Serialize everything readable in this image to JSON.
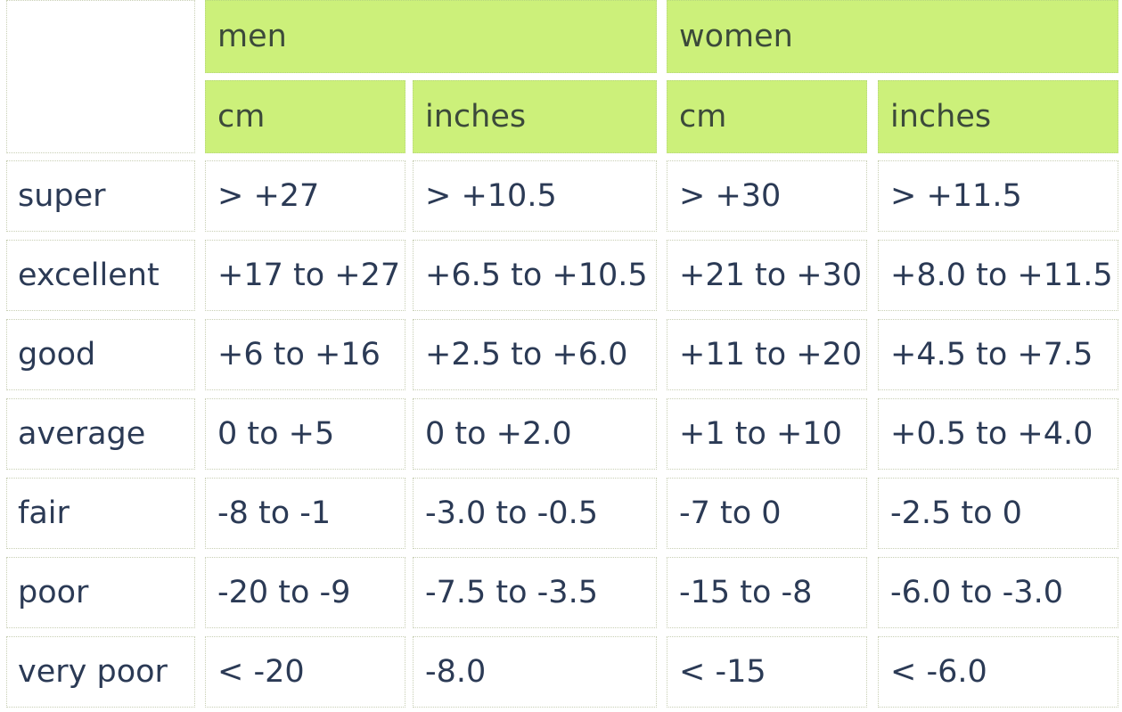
{
  "table": {
    "group_headers": [
      "men",
      "women"
    ],
    "sub_headers": [
      "cm",
      "inches",
      "cm",
      "inches"
    ],
    "rows": [
      {
        "label": "super",
        "values": [
          "> +27",
          "> +10.5",
          "> +30",
          "> +11.5"
        ]
      },
      {
        "label": "excellent",
        "values": [
          "+17 to +27",
          "+6.5 to +10.5",
          "+21 to +30",
          "+8.0 to +11.5"
        ]
      },
      {
        "label": "good",
        "values": [
          "+6 to +16",
          "+2.5 to +6.0",
          "+11 to +20",
          "+4.5 to +7.5"
        ]
      },
      {
        "label": "average",
        "values": [
          "0 to +5",
          "0 to +2.0",
          "+1 to +10",
          "+0.5 to +4.0"
        ]
      },
      {
        "label": "fair",
        "values": [
          "-8 to -1",
          "-3.0 to -0.5",
          "-7 to 0",
          "-2.5 to 0"
        ]
      },
      {
        "label": "poor",
        "values": [
          "-20 to -9",
          "-7.5 to -3.5",
          "-15 to -8",
          "-6.0 to -3.0"
        ]
      },
      {
        "label": "very poor",
        "values": [
          "< -20",
          "-8.0",
          "< -15",
          "< -6.0"
        ]
      }
    ]
  },
  "colors": {
    "header_bg": "#ccf07a",
    "text": "#2b3a55",
    "border": "#c8cfb4"
  }
}
